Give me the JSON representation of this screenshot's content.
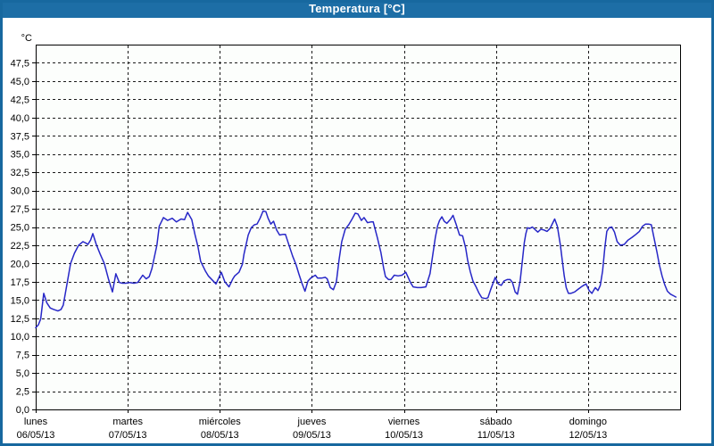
{
  "window": {
    "title": "Temperatura [°C]"
  },
  "colors": {
    "titlebar_bg": "#1d6ea6",
    "frame_border": "#17689f",
    "plot_bg": "#fcfefc",
    "plot_border": "#000000",
    "grid": "#1a1a1a",
    "line": "#2727c7",
    "tick_text": "#000000"
  },
  "chart_data": {
    "type": "line",
    "title": "Temperatura [°C]",
    "legend": "none",
    "grid": "dashed",
    "y_axis": {
      "unit": "°C",
      "min": 0,
      "max": 50,
      "tick_step": 2.5,
      "ticks": [
        {
          "value": 0,
          "label": "0,0"
        },
        {
          "value": 2.5,
          "label": "2,5"
        },
        {
          "value": 5,
          "label": "5,0"
        },
        {
          "value": 7.5,
          "label": "7,5"
        },
        {
          "value": 10,
          "label": "10,0"
        },
        {
          "value": 12.5,
          "label": "12,5"
        },
        {
          "value": 15,
          "label": "15,0"
        },
        {
          "value": 17.5,
          "label": "17,5"
        },
        {
          "value": 20,
          "label": "20,0"
        },
        {
          "value": 22.5,
          "label": "22,5"
        },
        {
          "value": 25,
          "label": "25,0"
        },
        {
          "value": 27.5,
          "label": "27,5"
        },
        {
          "value": 30,
          "label": "30,0"
        },
        {
          "value": 32.5,
          "label": "32,5"
        },
        {
          "value": 35,
          "label": "35,0"
        },
        {
          "value": 37.5,
          "label": "37,5"
        },
        {
          "value": 40,
          "label": "40,0"
        },
        {
          "value": 42.5,
          "label": "42,5"
        },
        {
          "value": 45,
          "label": "45,0"
        },
        {
          "value": 47.5,
          "label": "47,5"
        }
      ]
    },
    "x_axis": {
      "hours_span": 168,
      "hours_per_day": 24,
      "days": [
        {
          "name": "lunes",
          "date": "06/05/13"
        },
        {
          "name": "martes",
          "date": "07/05/13"
        },
        {
          "name": "miércoles",
          "date": "08/05/13"
        },
        {
          "name": "jueves",
          "date": "09/05/13"
        },
        {
          "name": "viernes",
          "date": "10/05/13"
        },
        {
          "name": "sábado",
          "date": "11/05/13"
        },
        {
          "name": "domingo",
          "date": "12/05/13"
        }
      ]
    },
    "series": [
      {
        "name": "Temperatura",
        "color": "#2727c7",
        "points": [
          [
            0,
            11.2
          ],
          [
            0.7,
            11.6
          ],
          [
            1.3,
            12.4
          ],
          [
            2.1,
            15.9
          ],
          [
            2.9,
            14.6
          ],
          [
            3.8,
            13.9
          ],
          [
            4.7,
            13.7
          ],
          [
            5.8,
            13.5
          ],
          [
            6.6,
            13.7
          ],
          [
            7.2,
            14.3
          ],
          [
            8.1,
            17.0
          ],
          [
            9.1,
            20.0
          ],
          [
            10.1,
            21.4
          ],
          [
            11.2,
            22.5
          ],
          [
            12.3,
            23.0
          ],
          [
            13.1,
            22.8
          ],
          [
            13.6,
            22.6
          ],
          [
            14.3,
            23.2
          ],
          [
            14.9,
            24.1
          ],
          [
            15.8,
            22.6
          ],
          [
            16.8,
            21.3
          ],
          [
            17.9,
            20.0
          ],
          [
            19.0,
            17.8
          ],
          [
            20.0,
            16.1
          ],
          [
            20.9,
            18.6
          ],
          [
            21.8,
            17.4
          ],
          [
            22.6,
            17.3
          ],
          [
            23.5,
            17.3
          ],
          [
            24.5,
            17.4
          ],
          [
            25.6,
            17.3
          ],
          [
            26.6,
            17.4
          ],
          [
            27.9,
            18.4
          ],
          [
            28.8,
            17.9
          ],
          [
            29.6,
            18.2
          ],
          [
            30.3,
            19.3
          ],
          [
            30.9,
            20.8
          ],
          [
            31.6,
            22.5
          ],
          [
            32.2,
            25.1
          ],
          [
            33.3,
            26.3
          ],
          [
            34.4,
            25.9
          ],
          [
            35.6,
            26.2
          ],
          [
            36.7,
            25.7
          ],
          [
            37.9,
            26.1
          ],
          [
            38.8,
            26.0
          ],
          [
            39.6,
            27.0
          ],
          [
            40.7,
            26.0
          ],
          [
            41.5,
            24.0
          ],
          [
            42.3,
            22.3
          ],
          [
            43.0,
            20.3
          ],
          [
            44.2,
            19.0
          ],
          [
            45.0,
            18.3
          ],
          [
            46.1,
            17.7
          ],
          [
            47.0,
            17.2
          ],
          [
            48.4,
            18.8
          ],
          [
            49.3,
            17.5
          ],
          [
            50.4,
            16.8
          ],
          [
            51.4,
            17.9
          ],
          [
            51.9,
            18.3
          ],
          [
            53.0,
            18.8
          ],
          [
            53.9,
            19.9
          ],
          [
            54.3,
            21.3
          ],
          [
            55.4,
            23.9
          ],
          [
            56.2,
            24.9
          ],
          [
            57.0,
            25.3
          ],
          [
            57.7,
            25.4
          ],
          [
            58.5,
            26.2
          ],
          [
            59.3,
            27.2
          ],
          [
            60.0,
            27.1
          ],
          [
            60.6,
            26.2
          ],
          [
            61.3,
            25.4
          ],
          [
            62.0,
            25.8
          ],
          [
            62.8,
            24.6
          ],
          [
            63.6,
            23.9
          ],
          [
            64.5,
            24.0
          ],
          [
            65.1,
            24.0
          ],
          [
            66.3,
            22.1
          ],
          [
            67.0,
            21.0
          ],
          [
            67.9,
            19.8
          ],
          [
            68.6,
            18.6
          ],
          [
            69.4,
            17.3
          ],
          [
            70.2,
            16.2
          ],
          [
            71.0,
            17.6
          ],
          [
            71.7,
            18.0
          ],
          [
            72.9,
            18.4
          ],
          [
            73.5,
            18.0
          ],
          [
            74.5,
            18.0
          ],
          [
            75.5,
            18.1
          ],
          [
            76.0,
            17.9
          ],
          [
            76.8,
            16.7
          ],
          [
            77.6,
            16.4
          ],
          [
            78.4,
            17.5
          ],
          [
            79.1,
            20.5
          ],
          [
            79.8,
            23.0
          ],
          [
            80.7,
            24.7
          ],
          [
            81.6,
            25.3
          ],
          [
            82.4,
            26.0
          ],
          [
            83.3,
            26.9
          ],
          [
            84.0,
            26.8
          ],
          [
            84.9,
            25.9
          ],
          [
            85.6,
            26.3
          ],
          [
            86.5,
            25.6
          ],
          [
            87.4,
            25.7
          ],
          [
            88.0,
            25.7
          ],
          [
            89.1,
            23.5
          ],
          [
            90.0,
            21.5
          ],
          [
            90.7,
            19.4
          ],
          [
            91.2,
            18.2
          ],
          [
            92.0,
            17.8
          ],
          [
            92.6,
            17.8
          ],
          [
            93.5,
            18.4
          ],
          [
            94.5,
            18.3
          ],
          [
            95.5,
            18.4
          ],
          [
            96.5,
            18.8
          ],
          [
            97.7,
            17.4
          ],
          [
            98.4,
            16.8
          ],
          [
            99.5,
            16.7
          ],
          [
            100.5,
            16.7
          ],
          [
            101.7,
            16.8
          ],
          [
            102.8,
            18.6
          ],
          [
            103.5,
            21.1
          ],
          [
            104.2,
            23.6
          ],
          [
            104.8,
            25.2
          ],
          [
            105.3,
            25.9
          ],
          [
            105.9,
            26.4
          ],
          [
            106.5,
            25.8
          ],
          [
            107.2,
            25.5
          ],
          [
            108.2,
            26.1
          ],
          [
            108.8,
            26.6
          ],
          [
            109.6,
            25.4
          ],
          [
            110.5,
            23.9
          ],
          [
            111.3,
            23.8
          ],
          [
            112.1,
            22.1
          ],
          [
            112.6,
            20.5
          ],
          [
            113.3,
            18.9
          ],
          [
            114.0,
            17.6
          ],
          [
            114.8,
            16.8
          ],
          [
            115.5,
            16.0
          ],
          [
            116.3,
            15.3
          ],
          [
            117.3,
            15.2
          ],
          [
            117.9,
            15.3
          ],
          [
            118.6,
            16.4
          ],
          [
            119.8,
            18.1
          ],
          [
            120.6,
            17.2
          ],
          [
            121.4,
            17.0
          ],
          [
            122.1,
            17.6
          ],
          [
            122.9,
            17.8
          ],
          [
            123.7,
            17.8
          ],
          [
            124.3,
            17.4
          ],
          [
            125.0,
            16.1
          ],
          [
            125.6,
            15.8
          ],
          [
            126.3,
            17.6
          ],
          [
            126.9,
            20.5
          ],
          [
            127.4,
            22.9
          ],
          [
            127.8,
            24.1
          ],
          [
            128.2,
            24.9
          ],
          [
            128.8,
            24.8
          ],
          [
            129.5,
            25.0
          ],
          [
            130.3,
            24.6
          ],
          [
            130.9,
            24.3
          ],
          [
            131.7,
            24.7
          ],
          [
            132.5,
            24.6
          ],
          [
            133.3,
            24.4
          ],
          [
            134.1,
            24.8
          ],
          [
            135.3,
            26.1
          ],
          [
            136.0,
            25.1
          ],
          [
            136.8,
            22.5
          ],
          [
            137.3,
            20.3
          ],
          [
            137.8,
            18.3
          ],
          [
            138.3,
            16.7
          ],
          [
            138.9,
            15.9
          ],
          [
            139.5,
            15.9
          ],
          [
            140.5,
            16.1
          ],
          [
            141.5,
            16.5
          ],
          [
            142.5,
            16.9
          ],
          [
            143.5,
            17.2
          ],
          [
            144.3,
            16.3
          ],
          [
            145.0,
            15.9
          ],
          [
            145.9,
            16.7
          ],
          [
            146.6,
            16.3
          ],
          [
            147.2,
            17.0
          ],
          [
            147.8,
            19.0
          ],
          [
            148.4,
            22.3
          ],
          [
            148.9,
            24.4
          ],
          [
            149.5,
            24.9
          ],
          [
            150.2,
            25.0
          ],
          [
            150.9,
            24.3
          ],
          [
            151.6,
            23.0
          ],
          [
            152.4,
            22.5
          ],
          [
            153.4,
            22.6
          ],
          [
            154.4,
            23.2
          ],
          [
            155.5,
            23.6
          ],
          [
            156.5,
            24.0
          ],
          [
            157.4,
            24.4
          ],
          [
            158.2,
            25.1
          ],
          [
            159.0,
            25.4
          ],
          [
            159.8,
            25.4
          ],
          [
            160.5,
            25.3
          ],
          [
            161.2,
            23.5
          ],
          [
            162.0,
            21.5
          ],
          [
            162.6,
            19.8
          ],
          [
            163.3,
            18.3
          ],
          [
            164.0,
            17.1
          ],
          [
            164.7,
            16.2
          ],
          [
            165.5,
            15.8
          ],
          [
            166.2,
            15.6
          ],
          [
            166.9,
            15.4
          ]
        ]
      }
    ]
  }
}
